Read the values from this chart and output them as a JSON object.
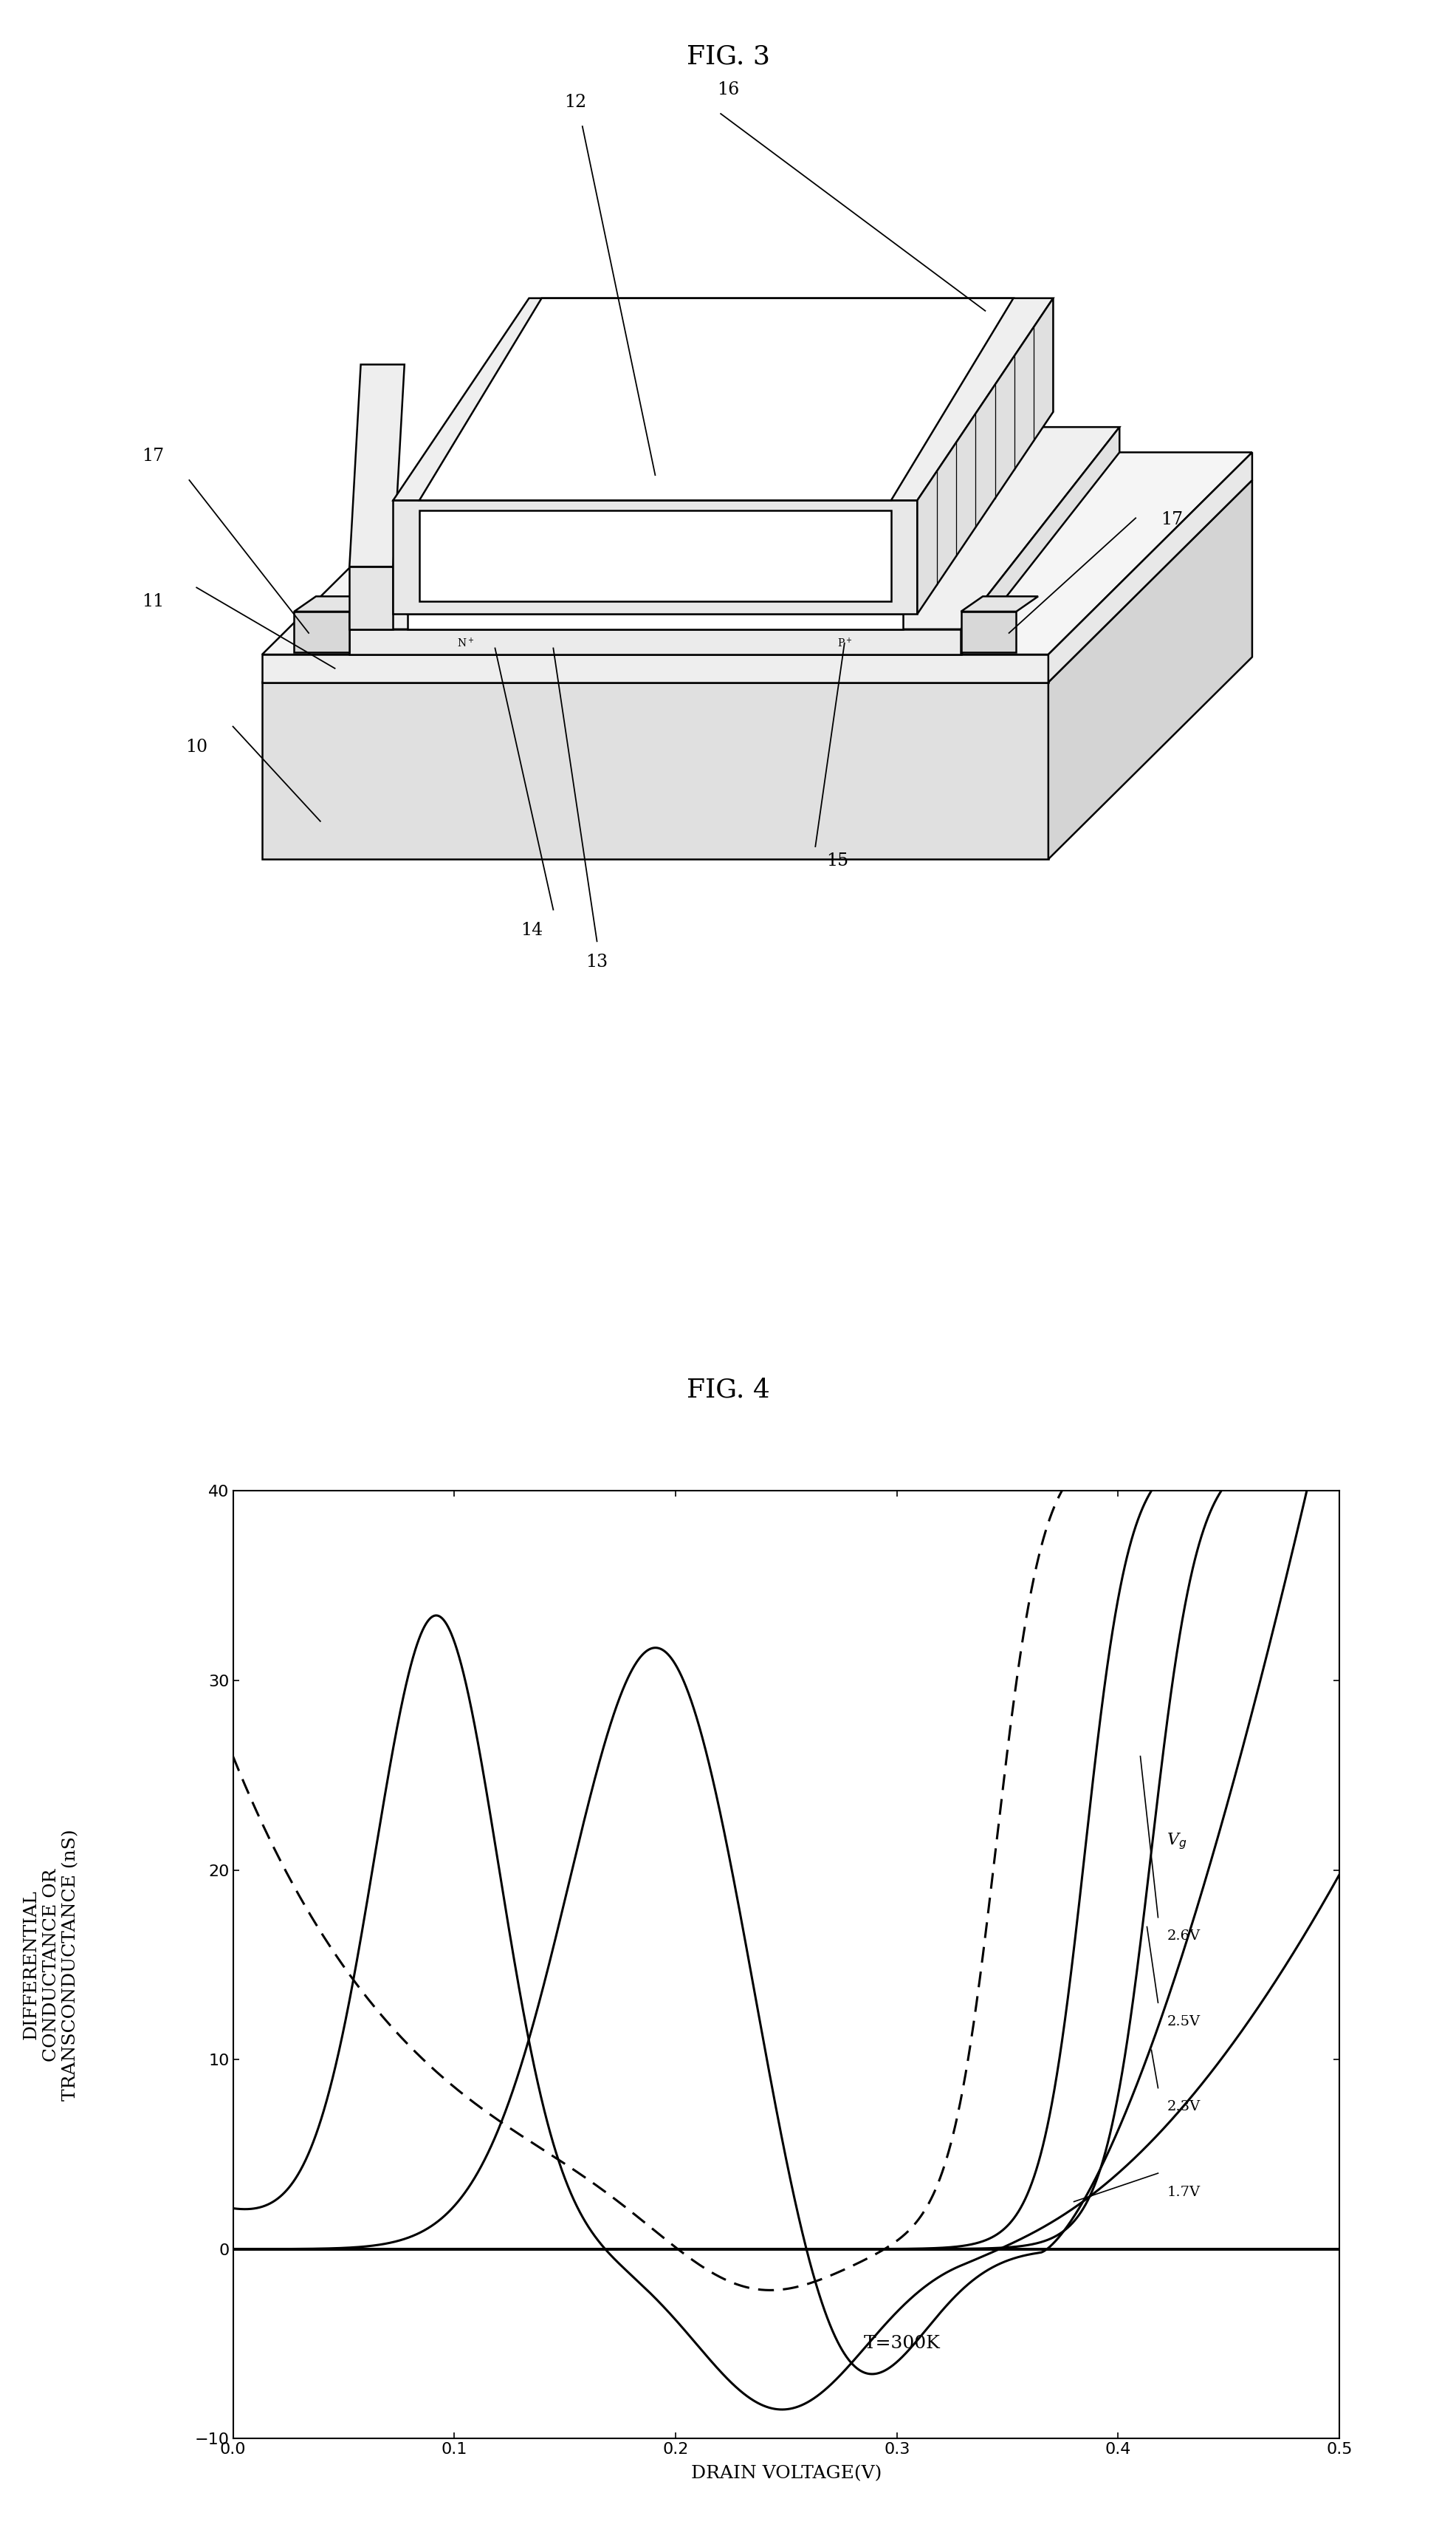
{
  "fig3_title": "FIG. 3",
  "fig4_title": "FIG. 4",
  "fig4_xlabel": "DRAIN VOLTAGE(V)",
  "fig4_ylabel": "DIFFERENTIAL\nCONDUCTANCE OR\nTRANSCONDUCTANCE (nS)",
  "fig4_annotation": "T=300K",
  "fig4_xlim": [
    0,
    0.5
  ],
  "fig4_ylim": [
    -10,
    40
  ],
  "fig4_xticks": [
    0,
    0.1,
    0.2,
    0.3,
    0.4,
    0.5
  ],
  "fig4_yticks": [
    -10,
    0,
    10,
    20,
    30,
    40
  ],
  "background_color": "#ffffff",
  "line_color": "#000000",
  "label_fontsize": 18,
  "tick_fontsize": 16,
  "title_fontsize": 26
}
